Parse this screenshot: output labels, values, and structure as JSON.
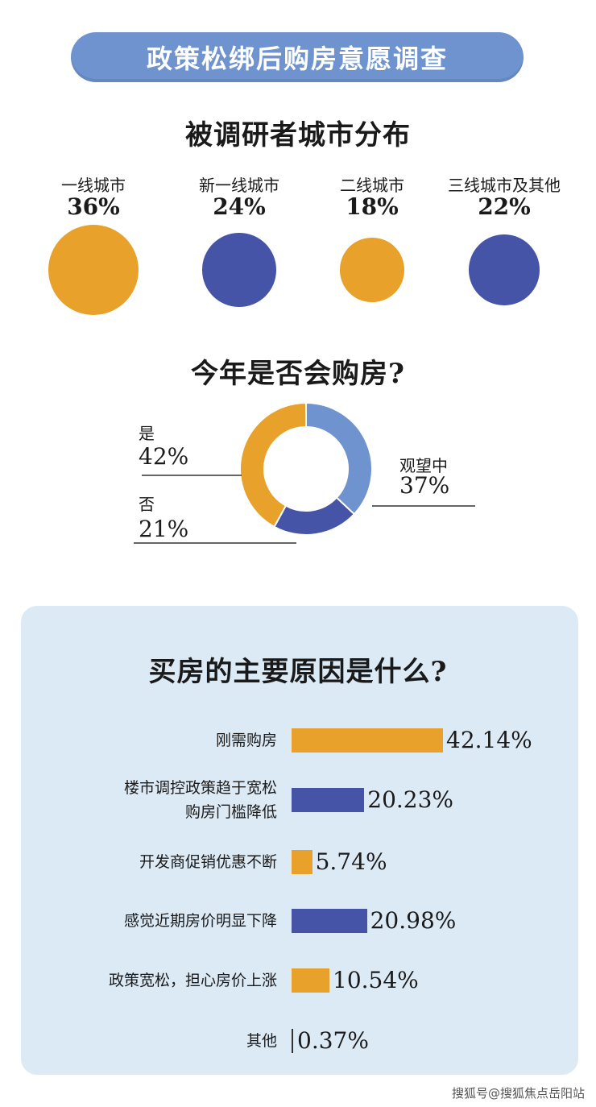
{
  "title": "政策松绑后购房意愿调查",
  "city_section": {
    "title": "被调研者城市分布"
  },
  "donut_section": {
    "title": "今年是否会购房?"
  },
  "reasons_section": {
    "title": "买房的主要原因是什么?"
  },
  "colors": {
    "orange": "#e8a12a",
    "blue": "#4654a8",
    "donut_blue": "#6e93cf",
    "banner": "#6e93cf",
    "panel": "#dceaf6"
  },
  "chart_data": [
    {
      "type": "bubble",
      "title": "被调研者城市分布",
      "categories": [
        "一线城市",
        "新一线城市",
        "二线城市",
        "三线城市及其他"
      ],
      "values": [
        36,
        24,
        18,
        22
      ],
      "labels": [
        "36%",
        "24%",
        "18%",
        "22%"
      ],
      "colors": [
        "orange",
        "blue",
        "orange",
        "blue"
      ]
    },
    {
      "type": "pie",
      "style": "donut",
      "title": "今年是否会购房?",
      "categories": [
        "观望中",
        "否",
        "是"
      ],
      "values": [
        37,
        21,
        42
      ],
      "labels": [
        "37%",
        "21%",
        "42%"
      ]
    },
    {
      "type": "bar",
      "orientation": "horizontal",
      "title": "买房的主要原因是什么?",
      "categories": [
        [
          "刚需购房"
        ],
        [
          "楼市调控政策趋于宽松",
          "购房门槛降低"
        ],
        [
          "开发商促销优惠不断"
        ],
        [
          "感觉近期房价明显下降"
        ],
        [
          "政策宽松，担心房价上涨"
        ],
        [
          "其他"
        ]
      ],
      "values": [
        42.14,
        20.23,
        5.74,
        20.98,
        10.54,
        0.37
      ],
      "labels": [
        "42.14%",
        "20.23%",
        "5.74%",
        "20.98%",
        "10.54%",
        "0.37%"
      ],
      "colors": [
        "orange",
        "blue",
        "orange",
        "blue",
        "orange",
        "blue"
      ]
    }
  ],
  "footer": "搜狐号@搜狐焦点岳阳站"
}
